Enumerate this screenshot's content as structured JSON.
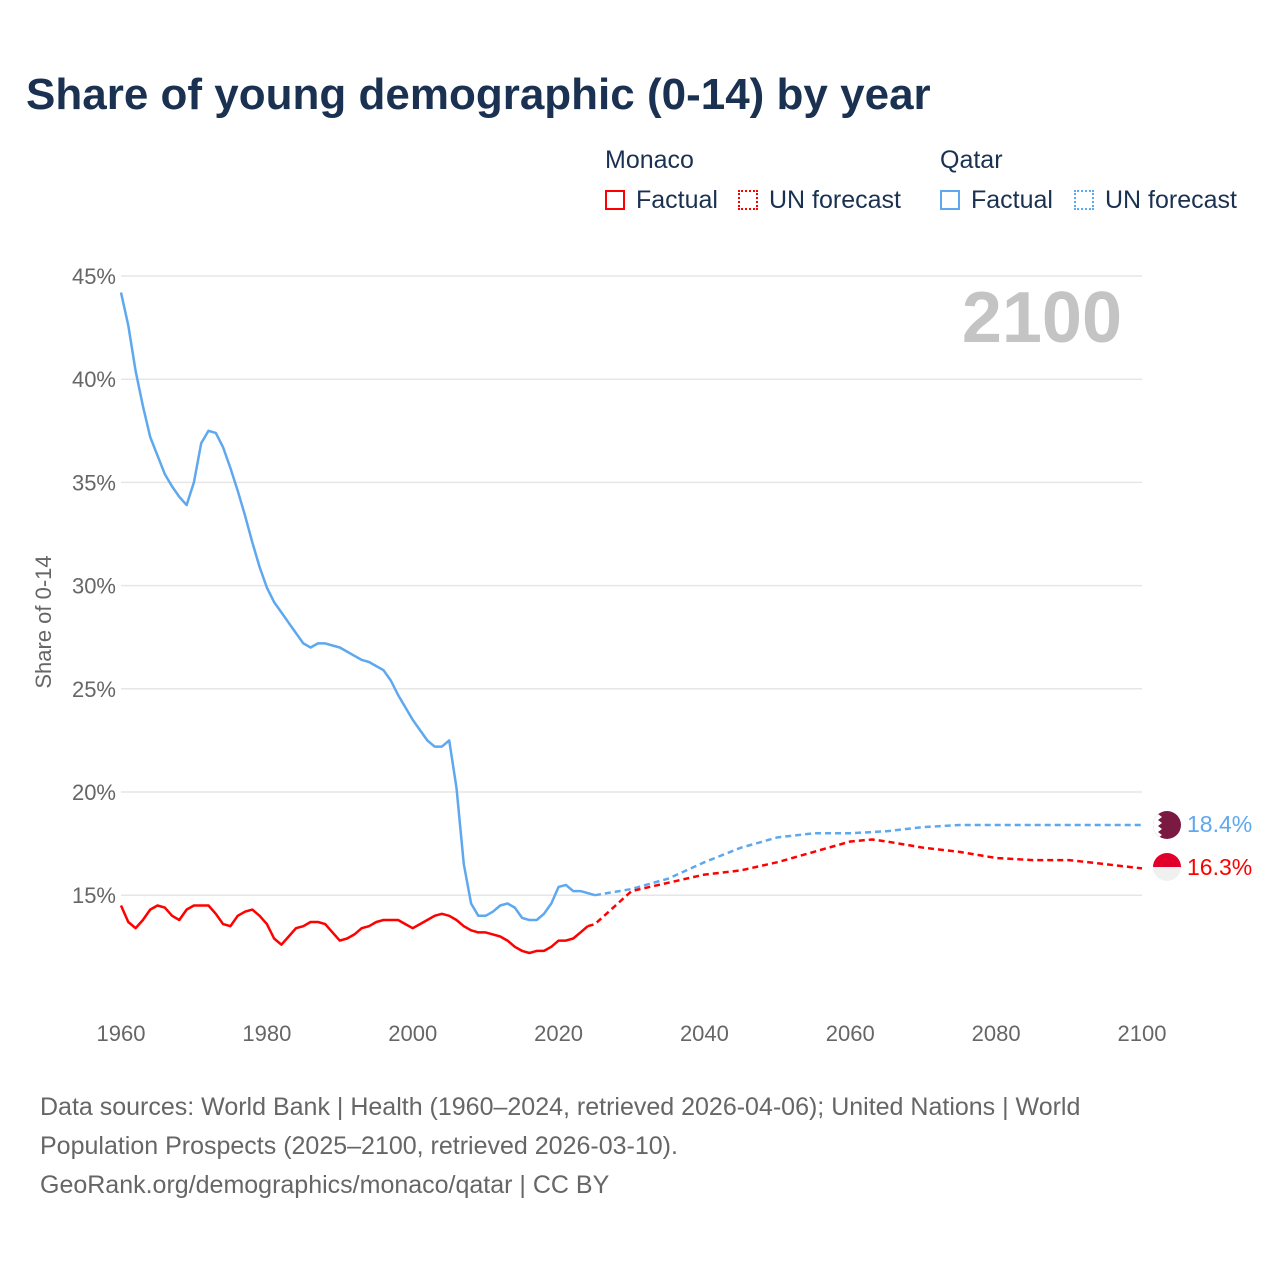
{
  "title": "Share of young demographic (0-14) by year",
  "legend": {
    "groups": [
      {
        "name": "Monaco",
        "factual": "Factual",
        "forecast": "UN forecast",
        "color": "#ff0000"
      },
      {
        "name": "Qatar",
        "factual": "Factual",
        "forecast": "UN forecast",
        "color": "#5ea8ef"
      }
    ]
  },
  "year_label": "2100",
  "end_labels": {
    "qatar": "18.4%",
    "monaco": "16.3%"
  },
  "footer": {
    "line1": "Data sources: World Bank | Health (1960–2024, retrieved 2026-04-06); United Nations | World",
    "line2": "Population Prospects (2025–2100, retrieved 2026-03-10).",
    "line3": "GeoRank.org/demographics/monaco/qatar | CC BY"
  },
  "chart_data": {
    "type": "line",
    "title": "Share of young demographic (0-14) by year",
    "xlabel": "",
    "ylabel": "Share of 0-14",
    "xlim": [
      1960,
      2100
    ],
    "ylim": [
      11,
      45
    ],
    "x_ticks": [
      1960,
      1980,
      2000,
      2020,
      2040,
      2060,
      2080,
      2100
    ],
    "x_tick_labels": [
      "1960",
      "1980",
      "2000",
      "2020",
      "2040",
      "2060",
      "2080",
      "2100"
    ],
    "y_ticks": [
      15,
      20,
      25,
      30,
      35,
      40,
      45
    ],
    "y_tick_labels": [
      "15%",
      "20%",
      "25%",
      "30%",
      "35%",
      "40%",
      "45%"
    ],
    "grid": true,
    "legend_position": "top-right",
    "series": [
      {
        "name": "Qatar Factual",
        "color": "#5ea8ef",
        "style": "solid",
        "x": [
          1960,
          1961,
          1962,
          1963,
          1964,
          1965,
          1966,
          1967,
          1968,
          1969,
          1970,
          1971,
          1972,
          1973,
          1974,
          1975,
          1976,
          1977,
          1978,
          1979,
          1980,
          1981,
          1982,
          1983,
          1984,
          1985,
          1986,
          1987,
          1988,
          1989,
          1990,
          1991,
          1992,
          1993,
          1994,
          1995,
          1996,
          1997,
          1998,
          1999,
          2000,
          2001,
          2002,
          2003,
          2004,
          2005,
          2006,
          2007,
          2008,
          2009,
          2010,
          2011,
          2012,
          2013,
          2014,
          2015,
          2016,
          2017,
          2018,
          2019,
          2020,
          2021,
          2022,
          2023,
          2024,
          2025
        ],
        "y": [
          44.2,
          42.6,
          40.4,
          38.7,
          37.2,
          36.3,
          35.4,
          34.8,
          34.3,
          33.9,
          35.0,
          36.9,
          37.5,
          37.4,
          36.7,
          35.7,
          34.6,
          33.4,
          32.1,
          30.9,
          29.9,
          29.2,
          28.7,
          28.2,
          27.7,
          27.2,
          27.0,
          27.2,
          27.2,
          27.1,
          27.0,
          26.8,
          26.6,
          26.4,
          26.3,
          26.1,
          25.9,
          25.4,
          24.7,
          24.1,
          23.5,
          23.0,
          22.5,
          22.2,
          22.2,
          22.5,
          20.2,
          16.5,
          14.6,
          14.0,
          14.0,
          14.2,
          14.5,
          14.6,
          14.4,
          13.9,
          13.8,
          13.8,
          14.1,
          14.6,
          15.4,
          15.5,
          15.2,
          15.2,
          15.1,
          15.0
        ]
      },
      {
        "name": "Qatar UN forecast",
        "color": "#5ea8ef",
        "style": "dashed",
        "x": [
          2025,
          2030,
          2035,
          2040,
          2045,
          2050,
          2055,
          2060,
          2065,
          2070,
          2075,
          2080,
          2090,
          2100
        ],
        "y": [
          15.0,
          15.3,
          15.8,
          16.6,
          17.3,
          17.8,
          18.0,
          18.0,
          18.1,
          18.3,
          18.4,
          18.4,
          18.4,
          18.4
        ]
      },
      {
        "name": "Monaco Factual",
        "color": "#ff0000",
        "style": "solid",
        "x": [
          1960,
          1961,
          1962,
          1963,
          1964,
          1965,
          1966,
          1967,
          1968,
          1969,
          1970,
          1971,
          1972,
          1973,
          1974,
          1975,
          1976,
          1977,
          1978,
          1979,
          1980,
          1981,
          1982,
          1983,
          1984,
          1985,
          1986,
          1987,
          1988,
          1989,
          1990,
          1991,
          1992,
          1993,
          1994,
          1995,
          1996,
          1997,
          1998,
          1999,
          2000,
          2001,
          2002,
          2003,
          2004,
          2005,
          2006,
          2007,
          2008,
          2009,
          2010,
          2011,
          2012,
          2013,
          2014,
          2015,
          2016,
          2017,
          2018,
          2019,
          2020,
          2021,
          2022,
          2023,
          2024
        ],
        "y": [
          14.5,
          13.7,
          13.4,
          13.8,
          14.3,
          14.5,
          14.4,
          14.0,
          13.8,
          14.3,
          14.5,
          14.5,
          14.5,
          14.1,
          13.6,
          13.5,
          14.0,
          14.2,
          14.3,
          14.0,
          13.6,
          12.9,
          12.6,
          13.0,
          13.4,
          13.5,
          13.7,
          13.7,
          13.6,
          13.2,
          12.8,
          12.9,
          13.1,
          13.4,
          13.5,
          13.7,
          13.8,
          13.8,
          13.8,
          13.6,
          13.4,
          13.6,
          13.8,
          14.0,
          14.1,
          14.0,
          13.8,
          13.5,
          13.3,
          13.2,
          13.2,
          13.1,
          13.0,
          12.8,
          12.5,
          12.3,
          12.2,
          12.3,
          12.3,
          12.5,
          12.8,
          12.8,
          12.9,
          13.2,
          13.5
        ]
      },
      {
        "name": "Monaco UN forecast",
        "color": "#ff0000",
        "style": "dashed",
        "x": [
          2024,
          2025,
          2030,
          2035,
          2040,
          2045,
          2050,
          2055,
          2060,
          2063,
          2065,
          2070,
          2075,
          2080,
          2085,
          2090,
          2095,
          2100
        ],
        "y": [
          13.5,
          13.6,
          15.2,
          15.6,
          16.0,
          16.2,
          16.6,
          17.1,
          17.6,
          17.7,
          17.6,
          17.3,
          17.1,
          16.8,
          16.7,
          16.7,
          16.5,
          16.3
        ]
      }
    ]
  }
}
